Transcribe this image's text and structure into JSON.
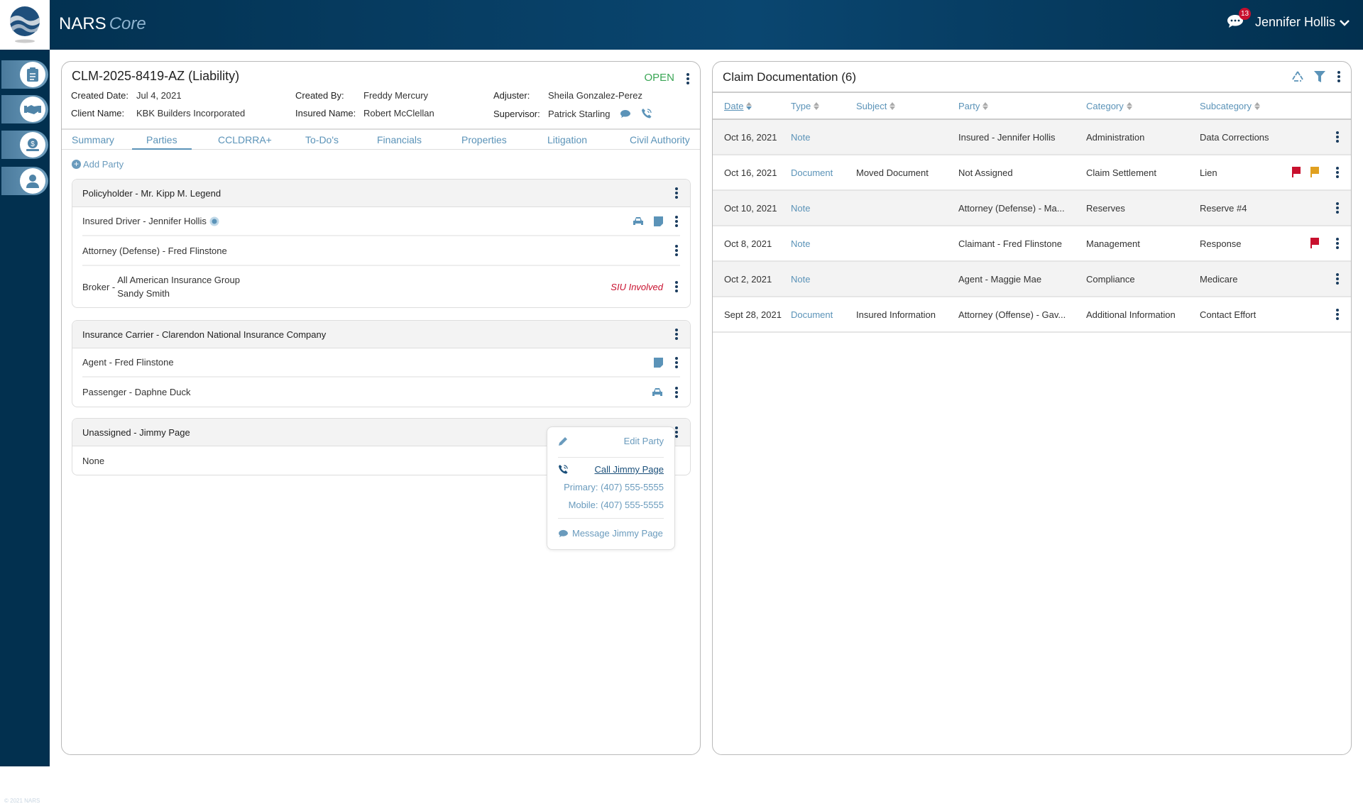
{
  "app": {
    "name": "NARS",
    "name_suffix": "Core",
    "copyright": "© 2021 NARS"
  },
  "header": {
    "user": "Jennifer Hollis",
    "notifications": "13"
  },
  "sidebar": {
    "items": [
      {
        "icon": "clipboard-icon"
      },
      {
        "icon": "handshake-icon"
      },
      {
        "icon": "money-icon"
      },
      {
        "icon": "user-icon"
      }
    ]
  },
  "claim": {
    "title": "CLM-2025-8419-AZ (Liability)",
    "status": "OPEN",
    "status_color": "#3aa655",
    "created_date_label": "Created Date:",
    "created_date": "Jul 4, 2021",
    "client_name_label": "Client Name:",
    "client_name": "KBK Builders Incorporated",
    "created_by_label": "Created By:",
    "created_by": "Freddy Mercury",
    "insured_name_label": "Insured Name:",
    "insured_name": "Robert McClellan",
    "adjuster_label": "Adjuster:",
    "adjuster": "Sheila Gonzalez-Perez",
    "supervisor_label": "Supervisor:",
    "supervisor": "Patrick Starling"
  },
  "tabs": [
    {
      "label": "Summary"
    },
    {
      "label": "Parties",
      "active": true
    },
    {
      "label": "CCLDRRA+"
    },
    {
      "label": "To-Do's"
    },
    {
      "label": "Financials"
    },
    {
      "label": "Properties"
    },
    {
      "label": "Litigation"
    },
    {
      "label": "Civil Authority"
    }
  ],
  "parties": {
    "add_label": "Add Party",
    "groups": [
      {
        "title": "Policyholder - Mr. Kipp M. Legend",
        "rows": [
          {
            "label": "Insured Driver - Jennifer Hollis"
          },
          {
            "label": "Attorney (Defense) - Fred Flinstone"
          },
          {
            "label": "Broker -",
            "line1": "All American Insurance Group",
            "line2": "Sandy Smith",
            "flag": "SIU Involved"
          }
        ]
      },
      {
        "title": "Insurance Carrier - Clarendon National Insurance Company",
        "rows": [
          {
            "label": "Agent - Fred Flinstone"
          },
          {
            "label": "Passenger - Daphne Duck"
          }
        ]
      },
      {
        "title": "Unassigned - Jimmy Page",
        "rows": [
          {
            "label": "None"
          }
        ]
      }
    ]
  },
  "popover": {
    "edit": "Edit Party",
    "call": "Call Jimmy Page",
    "primary": "Primary: (407) 555-5555",
    "mobile": "Mobile: (407) 555-5555",
    "message": "Message Jimmy Page"
  },
  "documentation": {
    "title": "Claim Documentation (6)",
    "columns": [
      "Date",
      "Type",
      "Subject",
      "Party",
      "Category",
      "Subcategory"
    ],
    "rows": [
      {
        "date": "Oct 16, 2021",
        "type": "Note",
        "subject": "",
        "party": "Insured - Jennifer Hollis",
        "category": "Administration",
        "subcategory": "Data Corrections",
        "flags": []
      },
      {
        "date": "Oct 16, 2021",
        "type": "Document",
        "subject": "Moved Document",
        "party": "Not Assigned",
        "category": "Claim Settlement",
        "subcategory": "Lien",
        "flags": [
          "#c8102e",
          "#e0a020"
        ]
      },
      {
        "date": "Oct 10, 2021",
        "type": "Note",
        "subject": "",
        "party": "Attorney (Defense) - Ma...",
        "category": "Reserves",
        "subcategory": "Reserve #4",
        "flags": []
      },
      {
        "date": "Oct 8, 2021",
        "type": "Note",
        "subject": "",
        "party": "Claimant - Fred Flinstone",
        "category": "Management",
        "subcategory": "Response",
        "flags": [
          "#c8102e"
        ]
      },
      {
        "date": "Oct 2, 2021",
        "type": "Note",
        "subject": "",
        "party": "Agent - Maggie Mae",
        "category": "Compliance",
        "subcategory": "Medicare",
        "flags": []
      },
      {
        "date": "Sept 28, 2021",
        "type": "Document",
        "subject": "Insured Information",
        "party": "Attorney (Offense) - Gav...",
        "category": "Additional Information",
        "subcategory": "Contact Effort",
        "flags": []
      }
    ]
  }
}
